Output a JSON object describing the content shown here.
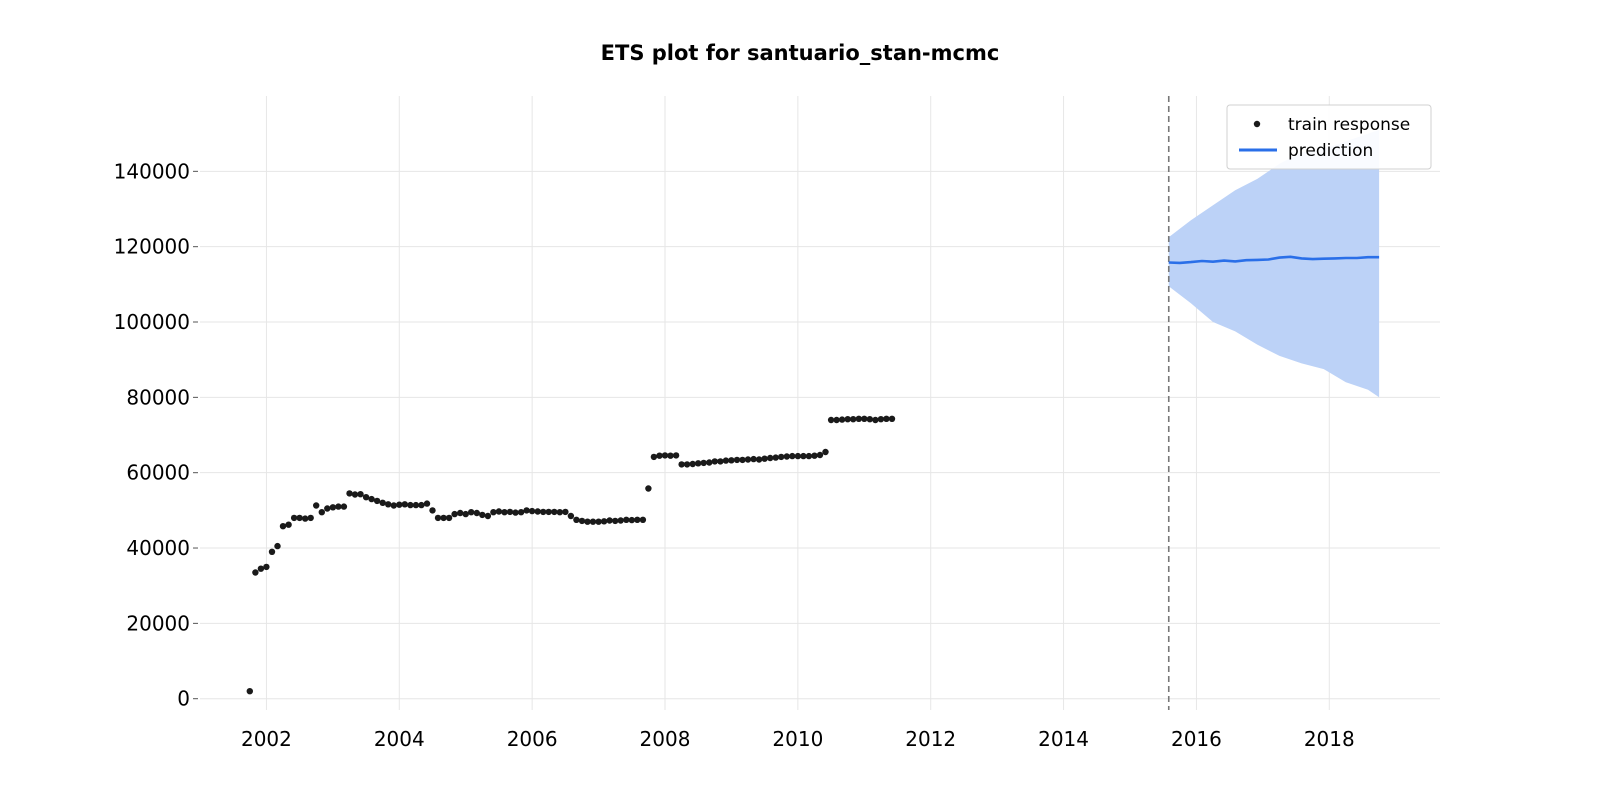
{
  "chart_data": {
    "type": "scatter",
    "title": "ETS plot for santuario_stan-mcmc",
    "xlabel": "",
    "ylabel": "",
    "xlim": [
      "2001-01-01",
      "2019-09-01"
    ],
    "ylim": [
      -3000,
      160000
    ],
    "x_ticks": [
      "2002",
      "2004",
      "2006",
      "2008",
      "2010",
      "2012",
      "2014",
      "2016",
      "2018"
    ],
    "y_ticks": [
      "0",
      "20000",
      "40000",
      "60000",
      "80000",
      "100000",
      "120000",
      "140000"
    ],
    "grid": true,
    "legend": {
      "position": "top-right",
      "entries": [
        "train response",
        "prediction"
      ]
    },
    "cutoff_date": "2015-08-01",
    "colors": {
      "train": "#1a1a1a",
      "prediction": "#2a6fe8",
      "band": "#bcd2f7",
      "cutoff": "#777777"
    },
    "series": [
      {
        "name": "train response",
        "kind": "scatter",
        "points": [
          [
            "2001-10",
            2000
          ],
          [
            "2001-11",
            33500
          ],
          [
            "2001-12",
            34500
          ],
          [
            "2002-01",
            35000
          ],
          [
            "2002-02",
            39000
          ],
          [
            "2002-03",
            40500
          ],
          [
            "2002-04",
            45800
          ],
          [
            "2002-05",
            46200
          ],
          [
            "2002-06",
            48000
          ],
          [
            "2002-07",
            48000
          ],
          [
            "2002-08",
            47800
          ],
          [
            "2002-09",
            48000
          ],
          [
            "2002-10",
            51300
          ],
          [
            "2002-11",
            49500
          ],
          [
            "2002-12",
            50500
          ],
          [
            "2003-01",
            50800
          ],
          [
            "2003-02",
            51000
          ],
          [
            "2003-03",
            51000
          ],
          [
            "2003-04",
            54500
          ],
          [
            "2003-05",
            54200
          ],
          [
            "2003-06",
            54300
          ],
          [
            "2003-07",
            53500
          ],
          [
            "2003-08",
            53000
          ],
          [
            "2003-09",
            52500
          ],
          [
            "2003-10",
            52000
          ],
          [
            "2003-11",
            51600
          ],
          [
            "2003-12",
            51300
          ],
          [
            "2004-01",
            51500
          ],
          [
            "2004-02",
            51600
          ],
          [
            "2004-03",
            51400
          ],
          [
            "2004-04",
            51400
          ],
          [
            "2004-05",
            51400
          ],
          [
            "2004-06",
            51800
          ],
          [
            "2004-07",
            50000
          ],
          [
            "2004-08",
            48000
          ],
          [
            "2004-09",
            48000
          ],
          [
            "2004-10",
            48000
          ],
          [
            "2004-11",
            49000
          ],
          [
            "2004-12",
            49300
          ],
          [
            "2005-01",
            49000
          ],
          [
            "2005-02",
            49500
          ],
          [
            "2005-03",
            49300
          ],
          [
            "2005-04",
            48800
          ],
          [
            "2005-05",
            48500
          ],
          [
            "2005-06",
            49500
          ],
          [
            "2005-07",
            49700
          ],
          [
            "2005-08",
            49500
          ],
          [
            "2005-09",
            49600
          ],
          [
            "2005-10",
            49400
          ],
          [
            "2005-11",
            49500
          ],
          [
            "2005-12",
            50000
          ],
          [
            "2006-01",
            49800
          ],
          [
            "2006-02",
            49700
          ],
          [
            "2006-03",
            49600
          ],
          [
            "2006-04",
            49600
          ],
          [
            "2006-05",
            49600
          ],
          [
            "2006-06",
            49500
          ],
          [
            "2006-07",
            49600
          ],
          [
            "2006-08",
            48500
          ],
          [
            "2006-09",
            47500
          ],
          [
            "2006-10",
            47200
          ],
          [
            "2006-11",
            47000
          ],
          [
            "2006-12",
            47000
          ],
          [
            "2007-01",
            47000
          ],
          [
            "2007-02",
            47100
          ],
          [
            "2007-03",
            47300
          ],
          [
            "2007-04",
            47200
          ],
          [
            "2007-05",
            47300
          ],
          [
            "2007-06",
            47500
          ],
          [
            "2007-07",
            47400
          ],
          [
            "2007-08",
            47500
          ],
          [
            "2007-09",
            47500
          ],
          [
            "2007-10",
            55800
          ],
          [
            "2007-11",
            64200
          ],
          [
            "2007-12",
            64500
          ],
          [
            "2008-01",
            64600
          ],
          [
            "2008-02",
            64500
          ],
          [
            "2008-03",
            64600
          ],
          [
            "2008-04",
            62200
          ],
          [
            "2008-05",
            62200
          ],
          [
            "2008-06",
            62300
          ],
          [
            "2008-07",
            62500
          ],
          [
            "2008-08",
            62600
          ],
          [
            "2008-09",
            62700
          ],
          [
            "2008-10",
            63000
          ],
          [
            "2008-11",
            63000
          ],
          [
            "2008-12",
            63200
          ],
          [
            "2009-01",
            63300
          ],
          [
            "2009-02",
            63400
          ],
          [
            "2009-03",
            63400
          ],
          [
            "2009-04",
            63500
          ],
          [
            "2009-05",
            63600
          ],
          [
            "2009-06",
            63500
          ],
          [
            "2009-07",
            63700
          ],
          [
            "2009-08",
            63900
          ],
          [
            "2009-09",
            64000
          ],
          [
            "2009-10",
            64200
          ],
          [
            "2009-11",
            64300
          ],
          [
            "2009-12",
            64400
          ],
          [
            "2010-01",
            64400
          ],
          [
            "2010-02",
            64400
          ],
          [
            "2010-03",
            64400
          ],
          [
            "2010-04",
            64500
          ],
          [
            "2010-05",
            64700
          ],
          [
            "2010-06",
            65500
          ],
          [
            "2010-07",
            74000
          ],
          [
            "2010-08",
            74000
          ],
          [
            "2010-09",
            74100
          ],
          [
            "2010-10",
            74200
          ],
          [
            "2010-11",
            74200
          ],
          [
            "2010-12",
            74300
          ],
          [
            "2011-01",
            74300
          ],
          [
            "2011-02",
            74200
          ],
          [
            "2011-03",
            74000
          ],
          [
            "2011-04",
            74200
          ],
          [
            "2011-05",
            74300
          ],
          [
            "2011-06",
            74300
          ]
        ]
      },
      {
        "name": "prediction",
        "kind": "line",
        "points": [
          [
            "2015-08",
            115800
          ],
          [
            "2015-10",
            115700
          ],
          [
            "2015-12",
            115900
          ],
          [
            "2016-02",
            116200
          ],
          [
            "2016-04",
            116000
          ],
          [
            "2016-06",
            116300
          ],
          [
            "2016-08",
            116100
          ],
          [
            "2016-10",
            116400
          ],
          [
            "2016-12",
            116500
          ],
          [
            "2017-02",
            116600
          ],
          [
            "2017-04",
            117100
          ],
          [
            "2017-06",
            117300
          ],
          [
            "2017-08",
            116900
          ],
          [
            "2017-10",
            116700
          ],
          [
            "2017-12",
            116800
          ],
          [
            "2018-02",
            116900
          ],
          [
            "2018-04",
            117000
          ],
          [
            "2018-06",
            117000
          ],
          [
            "2018-08",
            117200
          ],
          [
            "2018-10",
            117200
          ]
        ],
        "band": [
          [
            "2015-08",
            109500,
            122500
          ],
          [
            "2015-12",
            105000,
            127000
          ],
          [
            "2016-04",
            100000,
            131000
          ],
          [
            "2016-08",
            97500,
            135000
          ],
          [
            "2016-12",
            94000,
            138000
          ],
          [
            "2017-04",
            91000,
            142000
          ],
          [
            "2017-08",
            89000,
            145000
          ],
          [
            "2017-12",
            87500,
            146000
          ],
          [
            "2018-04",
            84000,
            148000
          ],
          [
            "2018-08",
            82000,
            150000
          ],
          [
            "2018-10",
            80000,
            151000
          ]
        ]
      }
    ]
  }
}
